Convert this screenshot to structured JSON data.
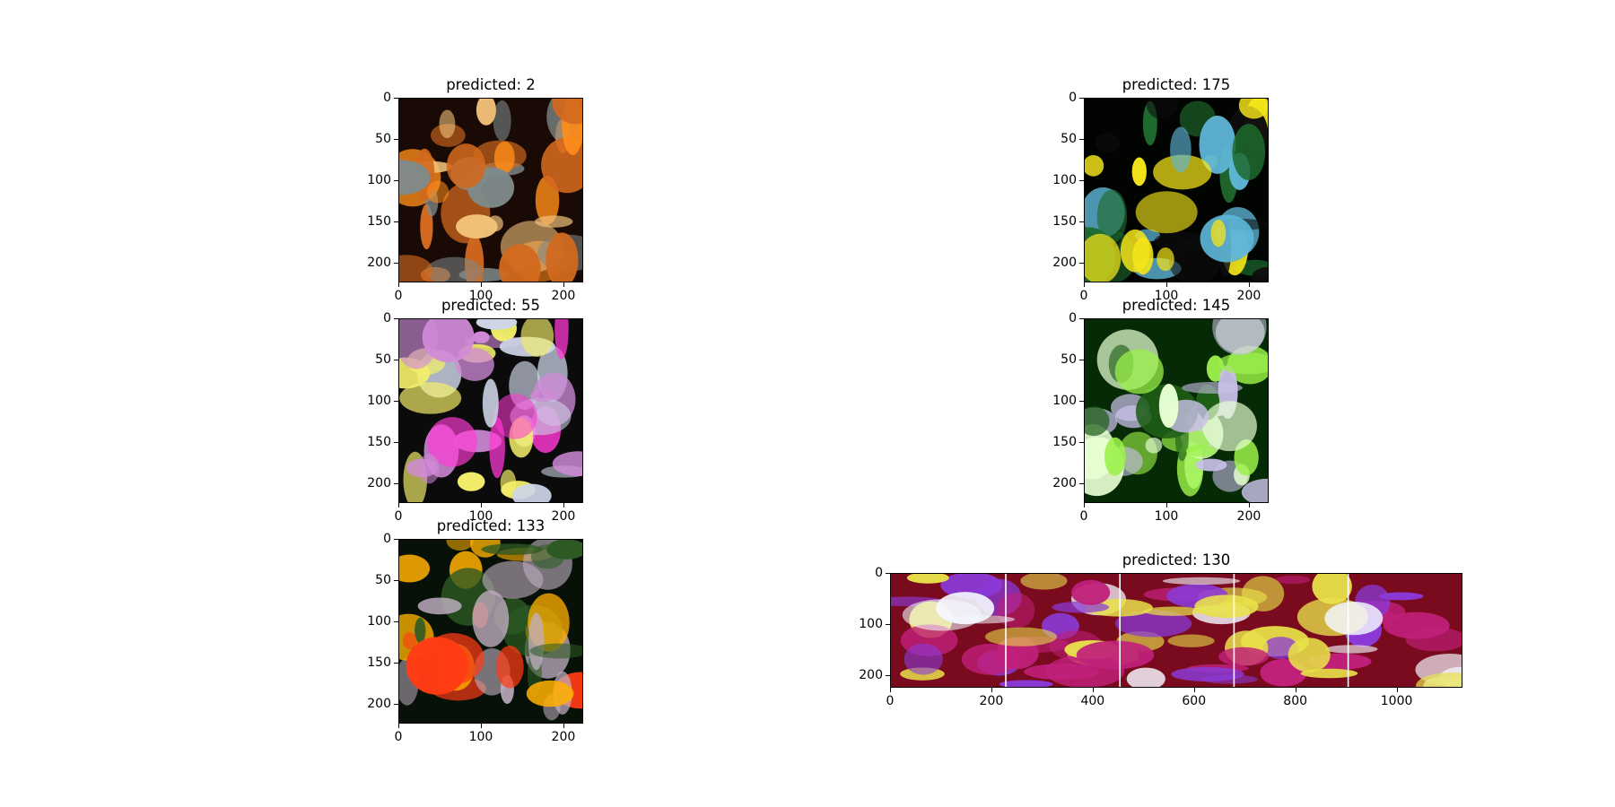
{
  "chart_data": [
    {
      "type": "image",
      "title": "predicted: 2",
      "xticks": [
        "0",
        "100",
        "200"
      ],
      "yticks": [
        "0",
        "50",
        "100",
        "150",
        "200"
      ],
      "xlim": [
        0,
        224
      ],
      "ylim": [
        224,
        0
      ],
      "palette": [
        "#1a0a05",
        "#d2691e",
        "#ff8c1a",
        "#f2c27a",
        "#7f8a8a"
      ]
    },
    {
      "type": "image",
      "title": "predicted: 175",
      "xticks": [
        "0",
        "100",
        "200"
      ],
      "yticks": [
        "0",
        "50",
        "100",
        "150",
        "200"
      ],
      "xlim": [
        0,
        224
      ],
      "ylim": [
        224,
        0
      ],
      "palette": [
        "#020402",
        "#f4e41a",
        "#5fb7d8",
        "#1f6b2e",
        "#0d0d0d"
      ]
    },
    {
      "type": "image",
      "title": "predicted: 55",
      "xticks": [
        "0",
        "100",
        "200"
      ],
      "yticks": [
        "0",
        "50",
        "100",
        "150",
        "200"
      ],
      "xlim": [
        0,
        224
      ],
      "ylim": [
        224,
        0
      ],
      "palette": [
        "#0b0b0b",
        "#d08ad8",
        "#ff39d4",
        "#f3ef6a",
        "#cfd6e8"
      ]
    },
    {
      "type": "image",
      "title": "predicted: 145",
      "xticks": [
        "0",
        "100",
        "200"
      ],
      "yticks": [
        "0",
        "50",
        "100",
        "150",
        "200"
      ],
      "xlim": [
        0,
        224
      ],
      "ylim": [
        224,
        0
      ],
      "palette": [
        "#062a05",
        "#9bf04a",
        "#e6ffd2",
        "#1e5f17",
        "#c9c0e8"
      ]
    },
    {
      "type": "image",
      "title": "predicted: 133",
      "xticks": [
        "0",
        "100",
        "200"
      ],
      "yticks": [
        "0",
        "50",
        "100",
        "150",
        "200"
      ],
      "xlim": [
        0,
        224
      ],
      "ylim": [
        224,
        0
      ],
      "palette": [
        "#071107",
        "#ff3c14",
        "#ffb000",
        "#2d5a24",
        "#bfaec0"
      ]
    },
    {
      "type": "image",
      "title": "predicted: 130",
      "xticks": [
        "0",
        "200",
        "400",
        "600",
        "800",
        "1000"
      ],
      "yticks": [
        "0",
        "100",
        "200"
      ],
      "xlim": [
        0,
        1130
      ],
      "ylim": [
        224,
        0
      ],
      "palette": [
        "#7a0a1e",
        "#c0207a",
        "#8b3ad8",
        "#e8e14a",
        "#f4f7ff"
      ]
    }
  ]
}
